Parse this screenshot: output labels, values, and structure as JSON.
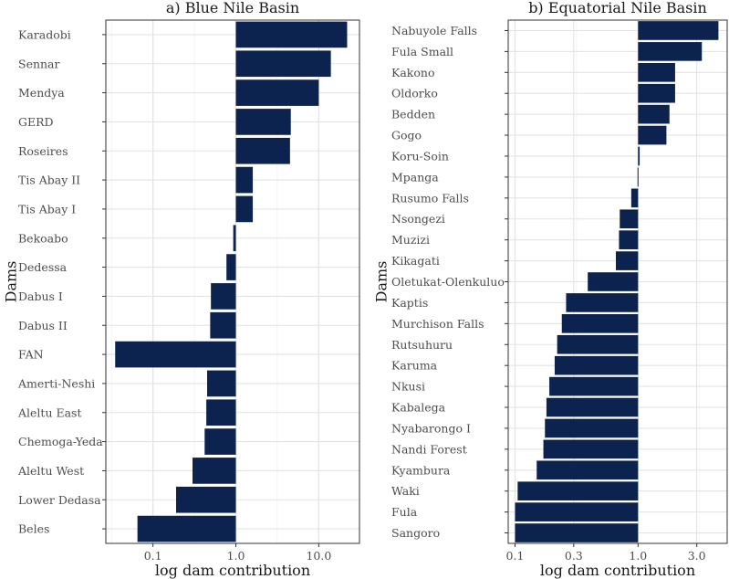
{
  "chart_data": [
    {
      "type": "bar",
      "orientation": "horizontal",
      "title": "a) Blue Nile Basin",
      "xlabel": "log dam contribution",
      "ylabel": "Dams",
      "x_scale": "log10",
      "xlim": [
        0.027,
        31
      ],
      "bar_baseline": 1.0,
      "x_ticks": [
        0.1,
        1.0,
        10.0
      ],
      "x_tick_labels": [
        "0.1",
        "1.0",
        "10.0"
      ],
      "grid": true,
      "bar_color": "#0b234e",
      "categories": [
        "Karadobi",
        "Sennar",
        "Mendya",
        "GERD",
        "Roseires",
        "Tis Abay II",
        "Tis Abay I",
        "Bekoabo",
        "Dedessa",
        "Dabus I",
        "Dabus II",
        "FAN",
        "Amerti-Neshi",
        "Aleltu East",
        "Chemoga-Yeda",
        "Aleltu West",
        "Lower Dedasa",
        "Beles"
      ],
      "values": [
        22,
        14,
        10,
        4.6,
        4.5,
        1.6,
        1.6,
        0.93,
        0.77,
        0.5,
        0.49,
        0.035,
        0.45,
        0.44,
        0.42,
        0.3,
        0.19,
        0.065
      ]
    },
    {
      "type": "bar",
      "orientation": "horizontal",
      "title": "b) Equatorial Nile Basin",
      "xlabel": "log dam contribution",
      "ylabel": "Dams",
      "x_scale": "log10",
      "xlim": [
        0.088,
        5.3
      ],
      "bar_baseline": 1.0,
      "x_ticks": [
        0.1,
        0.3,
        1.0,
        3.0
      ],
      "x_tick_labels": [
        "0.1",
        "0.3",
        "1.0",
        "3.0"
      ],
      "grid": true,
      "bar_color": "#0b234e",
      "categories": [
        "Nabuyole Falls",
        "Fula Small",
        "Kakono",
        "Oldorko",
        "Bedden",
        "Gogo",
        "Koru-Soin",
        "Mpanga",
        "Rusumo Falls",
        "Nsongezi",
        "Muzizi",
        "Kikagati",
        "Oletukat-Olenkuluo",
        "Kaptis",
        "Murchison Falls",
        "Rutsuhuru",
        "Karuma",
        "Nkusi",
        "Kabalega",
        "Nyabarongo I",
        "Nandi Forest",
        "Kyambura",
        "Waki",
        "Fula",
        "Sangoro"
      ],
      "values": [
        4.5,
        3.3,
        2.0,
        2.0,
        1.8,
        1.7,
        1.03,
        0.99,
        0.88,
        0.71,
        0.7,
        0.66,
        0.39,
        0.26,
        0.24,
        0.22,
        0.21,
        0.19,
        0.18,
        0.175,
        0.17,
        0.15,
        0.105,
        0.1,
        0.1
      ]
    }
  ]
}
